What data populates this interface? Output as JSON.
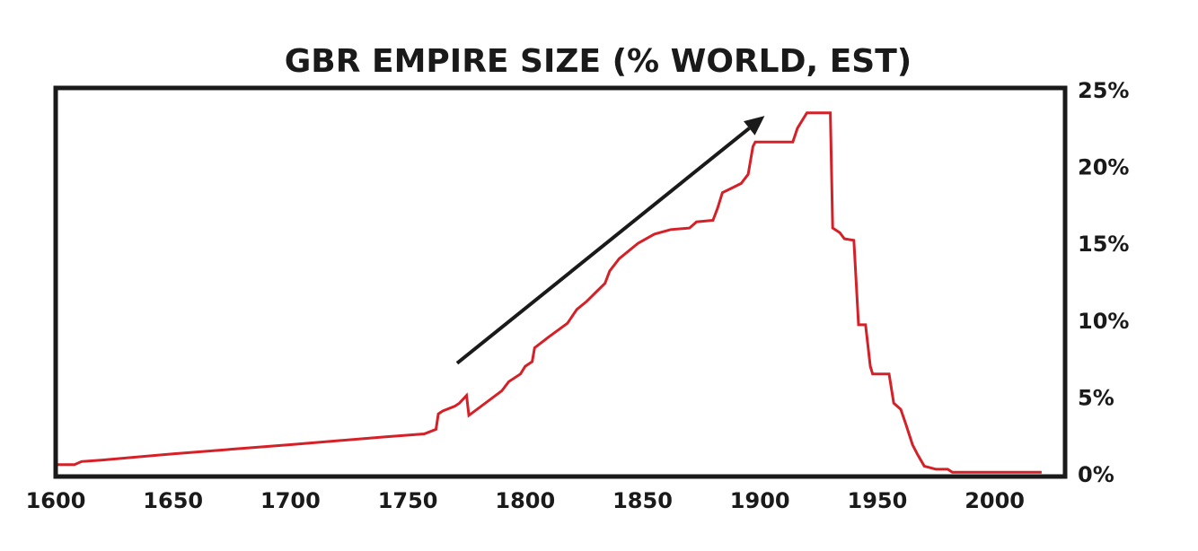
{
  "chart_data": {
    "type": "line",
    "title": "GBR EMPIRE SIZE (% WORLD, EST)",
    "xlabel": "",
    "ylabel": "",
    "xlim": [
      1600,
      2030
    ],
    "ylim": [
      0,
      25
    ],
    "x_ticks": [
      1600,
      1650,
      1700,
      1750,
      1800,
      1850,
      1900,
      1950,
      2000
    ],
    "y_ticks": [
      0,
      5,
      10,
      15,
      20,
      25
    ],
    "y_tick_labels": [
      "0%",
      "5%",
      "10%",
      "15%",
      "20%",
      "25%"
    ],
    "y_axis_side": "right",
    "grid": false,
    "legend": "none",
    "colors": {
      "series": "#d62027",
      "frame": "#1a1a1a",
      "arrow": "#1a1a1a",
      "text": "#1a1a1a"
    },
    "annotations": [
      {
        "type": "arrow",
        "direction": "up-right",
        "from": [
          1771,
          7.2
        ],
        "to": [
          1902,
          23.3
        ]
      }
    ],
    "series": [
      {
        "points": [
          [
            1600,
            0.6
          ],
          [
            1608,
            0.6
          ],
          [
            1611,
            0.8
          ],
          [
            1620,
            0.9
          ],
          [
            1650,
            1.3
          ],
          [
            1700,
            1.9
          ],
          [
            1740,
            2.4
          ],
          [
            1757,
            2.6
          ],
          [
            1762,
            2.9
          ],
          [
            1763,
            3.9
          ],
          [
            1765,
            4.1
          ],
          [
            1770,
            4.4
          ],
          [
            1772,
            4.6
          ],
          [
            1775,
            5.1
          ],
          [
            1776,
            3.8
          ],
          [
            1790,
            5.4
          ],
          [
            1793,
            6.0
          ],
          [
            1798,
            6.5
          ],
          [
            1800,
            7.0
          ],
          [
            1803,
            7.3
          ],
          [
            1804,
            8.2
          ],
          [
            1810,
            8.9
          ],
          [
            1818,
            9.8
          ],
          [
            1822,
            10.7
          ],
          [
            1826,
            11.2
          ],
          [
            1830,
            11.8
          ],
          [
            1834,
            12.4
          ],
          [
            1836,
            13.2
          ],
          [
            1840,
            14.0
          ],
          [
            1848,
            15.0
          ],
          [
            1855,
            15.6
          ],
          [
            1862,
            15.9
          ],
          [
            1870,
            16.0
          ],
          [
            1873,
            16.4
          ],
          [
            1880,
            16.5
          ],
          [
            1882,
            17.3
          ],
          [
            1884,
            18.3
          ],
          [
            1888,
            18.6
          ],
          [
            1892,
            18.9
          ],
          [
            1895,
            19.5
          ],
          [
            1897,
            21.3
          ],
          [
            1898,
            21.6
          ],
          [
            1914,
            21.6
          ],
          [
            1916,
            22.5
          ],
          [
            1920,
            23.5
          ],
          [
            1930,
            23.5
          ],
          [
            1931,
            16.0
          ],
          [
            1934,
            15.7
          ],
          [
            1936,
            15.3
          ],
          [
            1940,
            15.2
          ],
          [
            1942,
            9.7
          ],
          [
            1945,
            9.7
          ],
          [
            1947,
            7.0
          ],
          [
            1948,
            6.5
          ],
          [
            1955,
            6.5
          ],
          [
            1957,
            4.6
          ],
          [
            1960,
            4.2
          ],
          [
            1962,
            3.3
          ],
          [
            1965,
            1.9
          ],
          [
            1967,
            1.3
          ],
          [
            1970,
            0.5
          ],
          [
            1975,
            0.3
          ],
          [
            1980,
            0.3
          ],
          [
            1982,
            0.1
          ],
          [
            2020,
            0.1
          ]
        ]
      }
    ]
  }
}
